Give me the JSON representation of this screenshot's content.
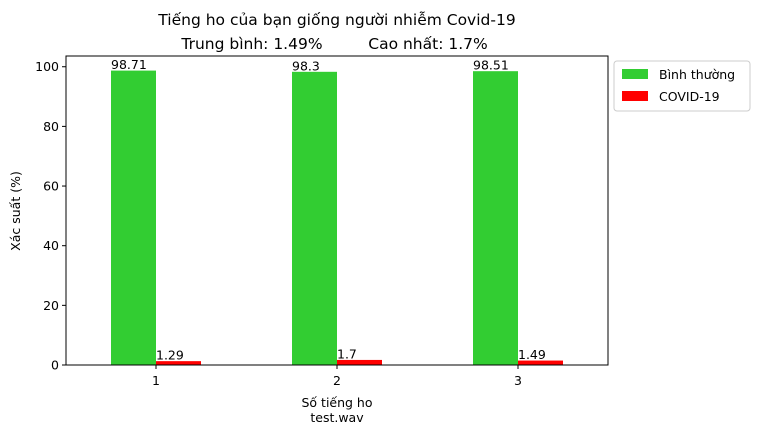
{
  "chart_data": {
    "type": "bar",
    "title": "Tiếng ho của bạn giống người nhiễm Covid-19",
    "subtitle_left": "Trung bình: 1.49%",
    "subtitle_right": "Cao nhất: 1.7%",
    "xlabel": "Số tiếng ho",
    "xlabel_secondary": "test.wav",
    "ylabel": "Xác suất (%)",
    "categories": [
      "1",
      "2",
      "3"
    ],
    "ylim": [
      0,
      103.6
    ],
    "yticks": [
      0,
      20,
      40,
      60,
      80,
      100
    ],
    "grid": false,
    "legend_position": "outside-top-right",
    "series": [
      {
        "name": "Bình thường",
        "color": "#32cd32",
        "values": [
          98.71,
          98.3,
          98.51
        ],
        "labels": [
          "98.71",
          "98.3",
          "98.51"
        ]
      },
      {
        "name": "COVID-19",
        "color": "#ff0000",
        "values": [
          1.29,
          1.7,
          1.49
        ],
        "labels": [
          "1.29",
          "1.7",
          "1.49"
        ]
      }
    ]
  }
}
